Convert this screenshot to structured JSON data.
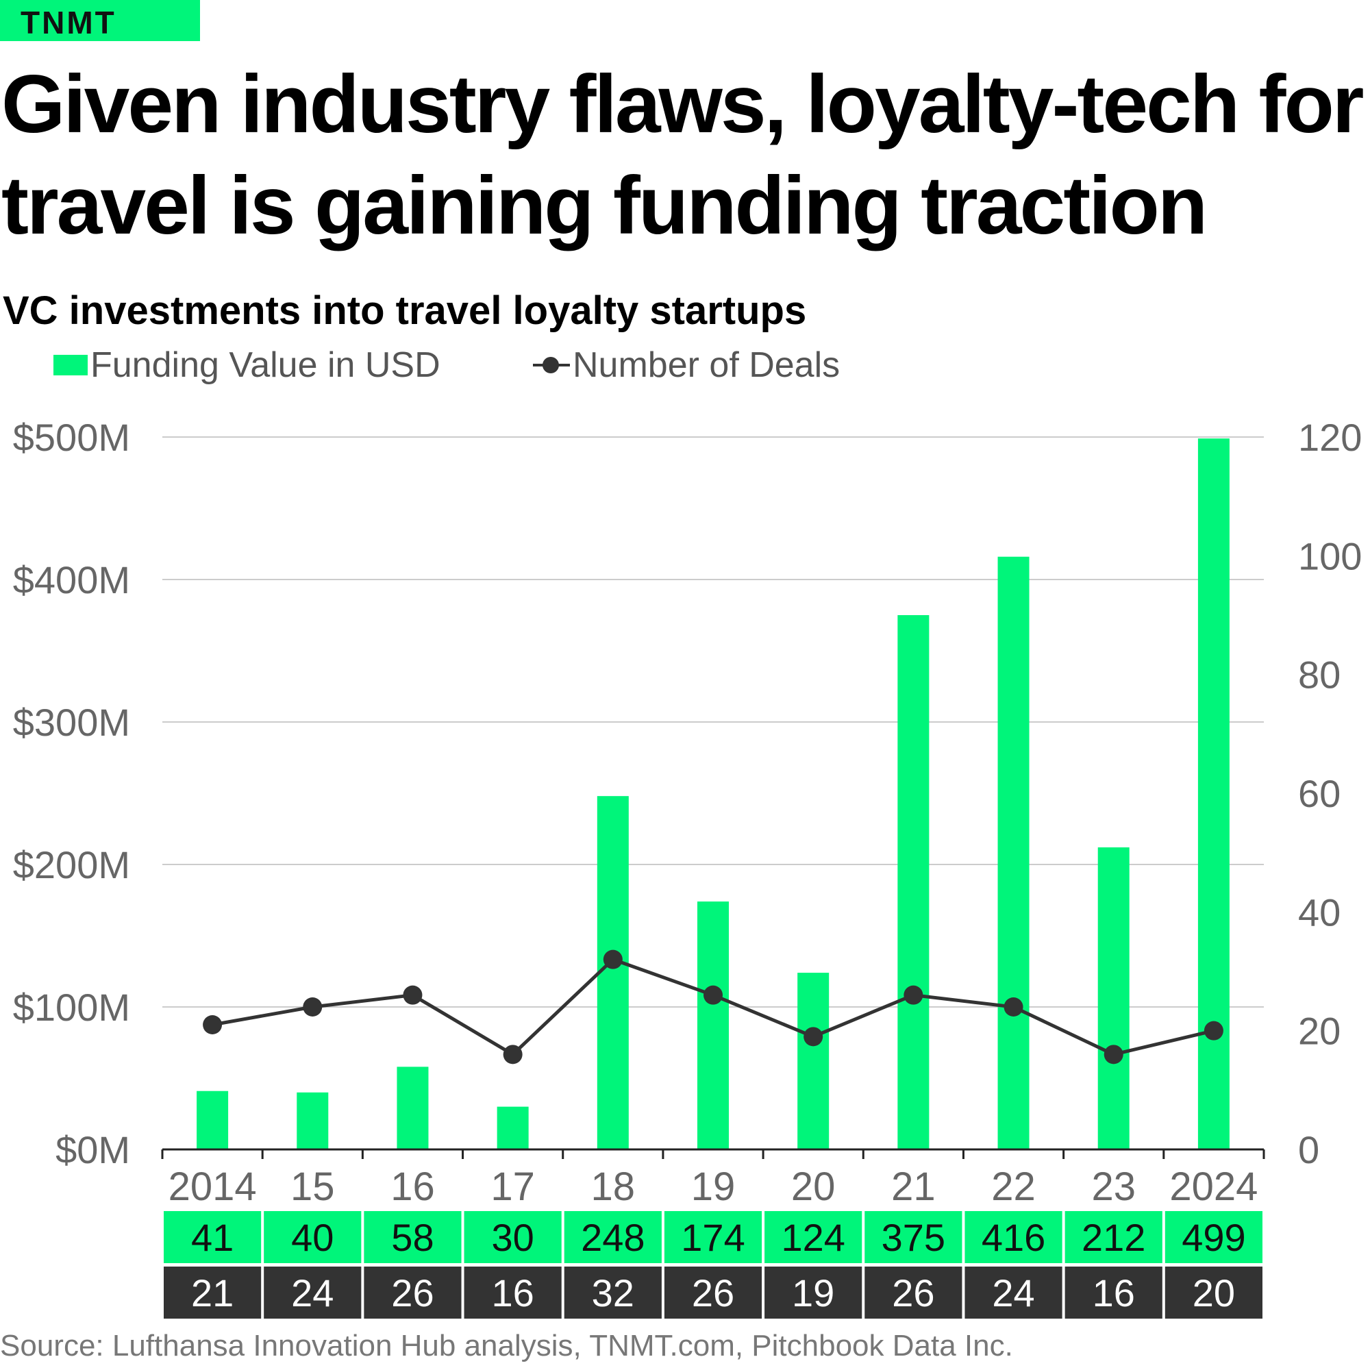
{
  "brand": "TNMT",
  "title": "Given industry flaws, loyalty-tech for travel is gaining funding traction",
  "colors": {
    "funding": "#00f57a",
    "deals": "#333333",
    "grid": "#cccccc",
    "tick_text": "#666666"
  },
  "chart_data": {
    "type": "bar",
    "title": "VC investments into travel loyalty startups",
    "categories": [
      "2014",
      "15",
      "16",
      "17",
      "18",
      "19",
      "20",
      "21",
      "22",
      "23",
      "2024"
    ],
    "series": [
      {
        "name": "Funding Value in USD",
        "type": "bar",
        "axis": "left",
        "values": [
          41,
          40,
          58,
          30,
          248,
          174,
          124,
          375,
          416,
          212,
          499
        ]
      },
      {
        "name": "Number of Deals",
        "type": "line",
        "axis": "right",
        "values": [
          21,
          24,
          26,
          16,
          32,
          26,
          19,
          26,
          24,
          16,
          20
        ]
      }
    ],
    "y_left": {
      "ticks": [
        "$0M",
        "$100M",
        "$200M",
        "$300M",
        "$400M",
        "$500M"
      ],
      "ylim": [
        0,
        500
      ]
    },
    "y_right": {
      "ticks": [
        "0",
        "20",
        "40",
        "60",
        "80",
        "100",
        "120"
      ],
      "ylim": [
        0,
        120
      ]
    },
    "table_rows": [
      [
        "41",
        "40",
        "58",
        "30",
        "248",
        "174",
        "124",
        "375",
        "416",
        "212",
        "499"
      ],
      [
        "21",
        "24",
        "26",
        "16",
        "32",
        "26",
        "19",
        "26",
        "24",
        "16",
        "20"
      ]
    ],
    "grid": true,
    "legend_position": "top-left"
  },
  "source": "Source: Lufthansa Innovation Hub analysis, TNMT.com, Pitchbook Data Inc."
}
